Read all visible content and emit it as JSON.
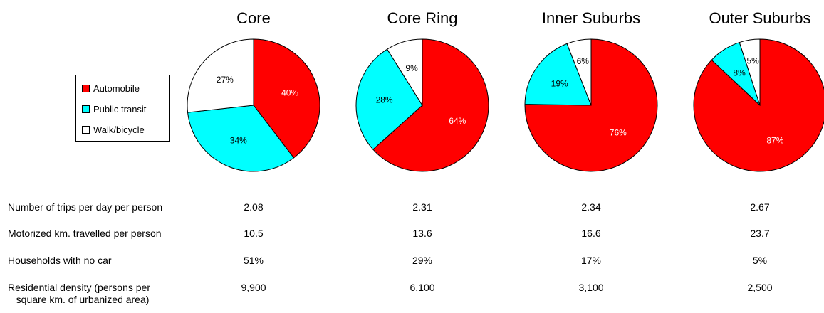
{
  "chart_data": {
    "type": "pie",
    "legend": [
      {
        "label": "Automobile",
        "color": "#ff0000"
      },
      {
        "label": "Public transit",
        "color": "#00ffff"
      },
      {
        "label": "Walk/bicycle",
        "color": "#ffffff"
      }
    ],
    "charts": [
      {
        "title": "Core",
        "slices": [
          {
            "category": "Automobile",
            "value": 40,
            "label": "40%"
          },
          {
            "category": "Public transit",
            "value": 34,
            "label": "34%"
          },
          {
            "category": "Walk/bicycle",
            "value": 27,
            "label": "27%"
          }
        ]
      },
      {
        "title": "Core Ring",
        "slices": [
          {
            "category": "Automobile",
            "value": 64,
            "label": "64%"
          },
          {
            "category": "Public transit",
            "value": 28,
            "label": "28%"
          },
          {
            "category": "Walk/bicycle",
            "value": 9,
            "label": "9%"
          }
        ]
      },
      {
        "title": "Inner Suburbs",
        "slices": [
          {
            "category": "Automobile",
            "value": 76,
            "label": "76%"
          },
          {
            "category": "Public transit",
            "value": 19,
            "label": "19%"
          },
          {
            "category": "Walk/bicycle",
            "value": 6,
            "label": "6%"
          }
        ]
      },
      {
        "title": "Outer Suburbs",
        "slices": [
          {
            "category": "Automobile",
            "value": 87,
            "label": "87%"
          },
          {
            "category": "Public transit",
            "value": 8,
            "label": "8%"
          },
          {
            "category": "Walk/bicycle",
            "value": 5,
            "label": "5%"
          }
        ]
      }
    ]
  },
  "table": {
    "rows": [
      {
        "label": "Number of trips per day per person",
        "values": [
          "2.08",
          "2.31",
          "2.34",
          "2.67"
        ]
      },
      {
        "label": "Motorized km. travelled per person",
        "values": [
          "10.5",
          "13.6",
          "16.6",
          "23.7"
        ]
      },
      {
        "label": "Households with no car",
        "values": [
          "51%",
          "29%",
          "17%",
          "5%"
        ]
      },
      {
        "label": "Residential density (persons per\n   square km. of urbanized area)",
        "values": [
          "9,900",
          "6,100",
          "3,100",
          "2,500"
        ]
      }
    ]
  }
}
